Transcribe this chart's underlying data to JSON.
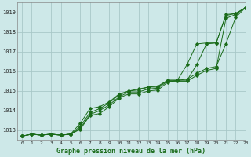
{
  "title": "Graphe pression niveau de la mer (hPa)",
  "bg_color": "#cde8e8",
  "grid_color": "#a8c8c8",
  "line_color": "#1a6b1a",
  "xlim": [
    -0.5,
    23
  ],
  "ylim": [
    1012.5,
    1019.5
  ],
  "xticks": [
    0,
    1,
    2,
    3,
    4,
    5,
    6,
    7,
    8,
    9,
    10,
    11,
    12,
    13,
    14,
    15,
    16,
    17,
    18,
    19,
    20,
    21,
    22,
    23
  ],
  "yticks": [
    1013,
    1014,
    1015,
    1016,
    1017,
    1018,
    1019
  ],
  "series": [
    [
      1012.7,
      1012.8,
      1012.75,
      1012.8,
      1012.75,
      1012.8,
      1013.1,
      1013.8,
      1014.0,
      1014.3,
      1014.7,
      1014.95,
      1014.95,
      1015.1,
      1015.15,
      1015.5,
      1015.5,
      1015.5,
      1015.8,
      1016.05,
      1016.15,
      1018.7,
      1018.9,
      1019.25
    ],
    [
      1012.7,
      1012.8,
      1012.75,
      1012.8,
      1012.75,
      1012.8,
      1013.2,
      1013.9,
      1014.1,
      1014.4,
      1014.8,
      1015.0,
      1015.05,
      1015.2,
      1015.2,
      1015.55,
      1015.55,
      1015.6,
      1015.9,
      1016.15,
      1016.25,
      1017.4,
      1018.75,
      1019.25
    ],
    [
      1012.7,
      1012.8,
      1012.75,
      1012.8,
      1012.75,
      1012.8,
      1013.35,
      1014.1,
      1014.2,
      1014.45,
      1014.85,
      1015.0,
      1015.1,
      1015.2,
      1015.25,
      1015.55,
      1015.55,
      1015.55,
      1016.35,
      1017.4,
      1017.45,
      1018.85,
      1018.95,
      1019.25
    ],
    [
      1012.7,
      1012.8,
      1012.75,
      1012.8,
      1012.75,
      1012.8,
      1013.05,
      1013.75,
      1013.85,
      1014.2,
      1014.65,
      1014.85,
      1014.85,
      1015.0,
      1015.05,
      1015.45,
      1015.55,
      1016.35,
      1017.4,
      1017.45,
      1017.45,
      1018.9,
      1018.95,
      1019.25
    ]
  ]
}
